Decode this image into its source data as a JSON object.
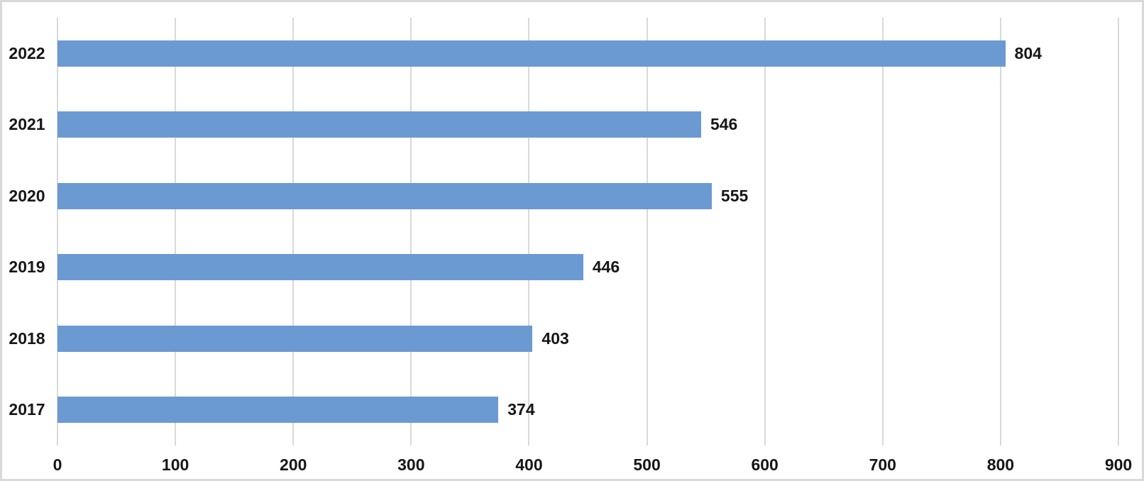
{
  "chart": {
    "title": "",
    "background_color": "#ffffff",
    "border_color": "#d9d9d9",
    "bar_color": "#6b9ad3",
    "gridline_color": "#d9d9d9",
    "text_color": "#161616"
  },
  "chart_data": {
    "type": "bar",
    "orientation": "horizontal",
    "categories": [
      "2022",
      "2021",
      "2020",
      "2019",
      "2018",
      "2017"
    ],
    "values": [
      804,
      546,
      555,
      446,
      403,
      374
    ],
    "data_labels": [
      "804",
      "546",
      "555",
      "446",
      "403",
      "374"
    ],
    "title": "",
    "xlabel": "",
    "ylabel": "",
    "xlim": [
      0,
      900
    ],
    "x_ticks": [
      0,
      100,
      200,
      300,
      400,
      500,
      600,
      700,
      800,
      900
    ],
    "grid": "vertical",
    "legend": "none"
  }
}
